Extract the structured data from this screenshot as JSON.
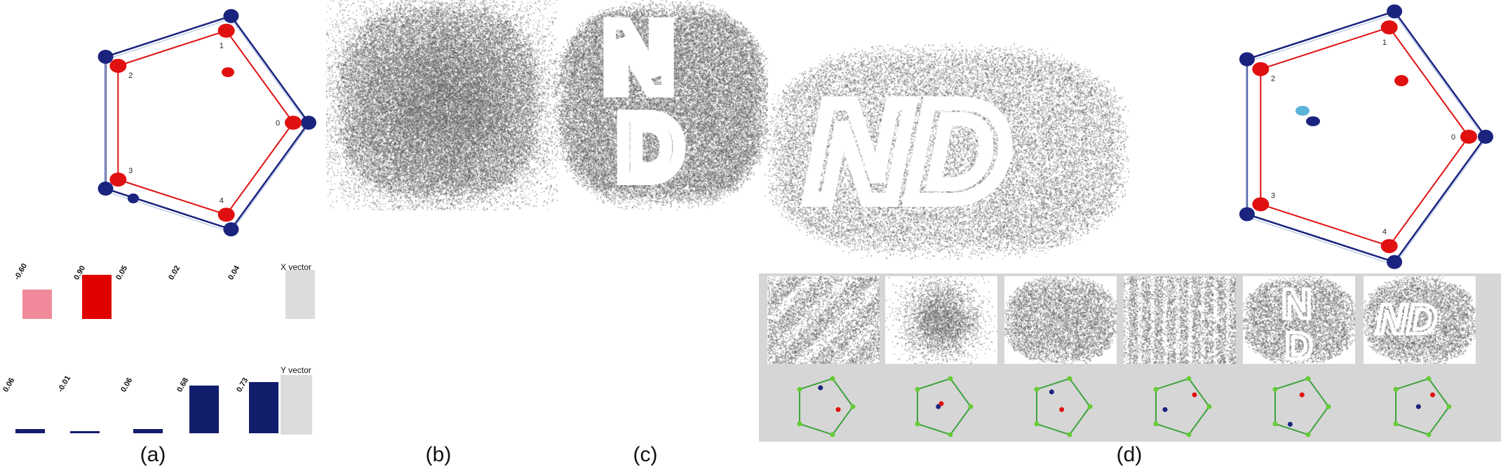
{
  "captions": {
    "a": "(a)",
    "b": "(b)",
    "c": "(c)",
    "d": "(d)"
  },
  "panel_a": {
    "anchor_labels": [
      "0",
      "1",
      "2",
      "3",
      "4"
    ],
    "x_vector": {
      "label": "X vector",
      "values": [
        "-0.60",
        "0.90",
        "0.05",
        "0.02",
        "0.04"
      ],
      "colors": [
        "#f08a9a",
        "#e00000",
        "#ffffff",
        "#ffffff",
        "#ffffff"
      ]
    },
    "y_vector": {
      "label": "Y vector",
      "values": [
        "0.06",
        "-0.01",
        "0.06",
        "0.68",
        "0.73"
      ],
      "colors": [
        "#121d6b",
        "#121d6b",
        "#121d6b",
        "#121d6b",
        "#121d6b"
      ]
    },
    "colors": {
      "red": "#e01010",
      "navy": "#1a237e",
      "panel_gray": "#dcdcdc"
    }
  },
  "panel_d": {
    "anchor_labels": [
      "0",
      "1",
      "2",
      "3",
      "4"
    ],
    "colors": {
      "red": "#e01010",
      "navy": "#1a237e",
      "cyan": "#5ab4d9",
      "strip_gray": "#d6d6d6",
      "green": "#3ea33e",
      "green_node": "#66cc33"
    }
  },
  "letters": {
    "c_top": "N",
    "c_bottom": "D",
    "b2_top": "N",
    "b2_bottom": "D",
    "c2_top": "N",
    "c2_bottom": "D",
    "d_big": "ND",
    "d_thumb5_top": "N",
    "d_thumb5_bottom": "D",
    "d_thumb6": "ND"
  }
}
